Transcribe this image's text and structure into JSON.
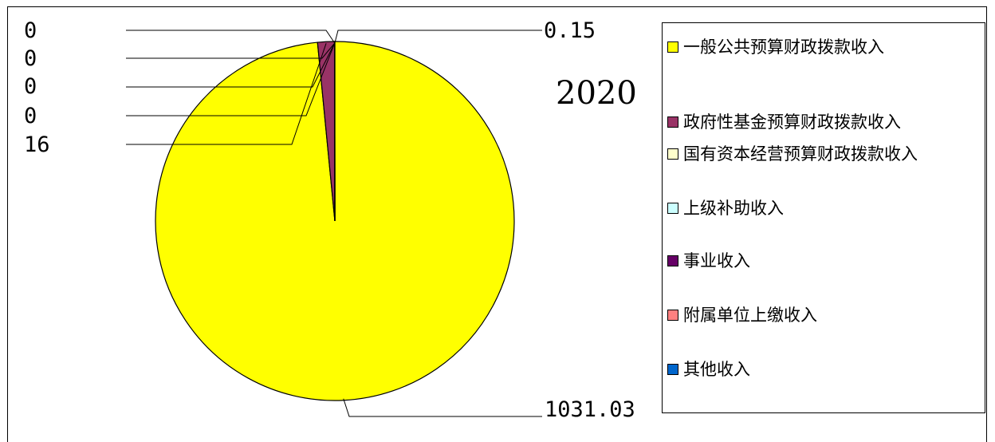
{
  "chart_data": {
    "type": "pie",
    "title": "2020",
    "series": [
      {
        "name": "一般公共预算财政拨款收入",
        "value": 1031.03,
        "color": "#FFFF00",
        "label": "1031.03"
      },
      {
        "name": "政府性基金预算财政拨款收入",
        "value": 16,
        "color": "#993366",
        "label": "16"
      },
      {
        "name": "国有资本经营预算财政拨款收入",
        "value": 0,
        "color": "#FFFFCC",
        "label": "0"
      },
      {
        "name": "上级补助收入",
        "value": 0,
        "color": "#CCFFFF",
        "label": "0"
      },
      {
        "name": "事业收入",
        "value": 0,
        "color": "#660066",
        "label": "0"
      },
      {
        "name": "附属单位上缴收入",
        "value": 0,
        "color": "#FF8080",
        "label": "0"
      },
      {
        "name": "其他收入",
        "value": 0.15,
        "color": "#0066CC",
        "label": "0.15"
      }
    ],
    "legend_position": "right"
  }
}
